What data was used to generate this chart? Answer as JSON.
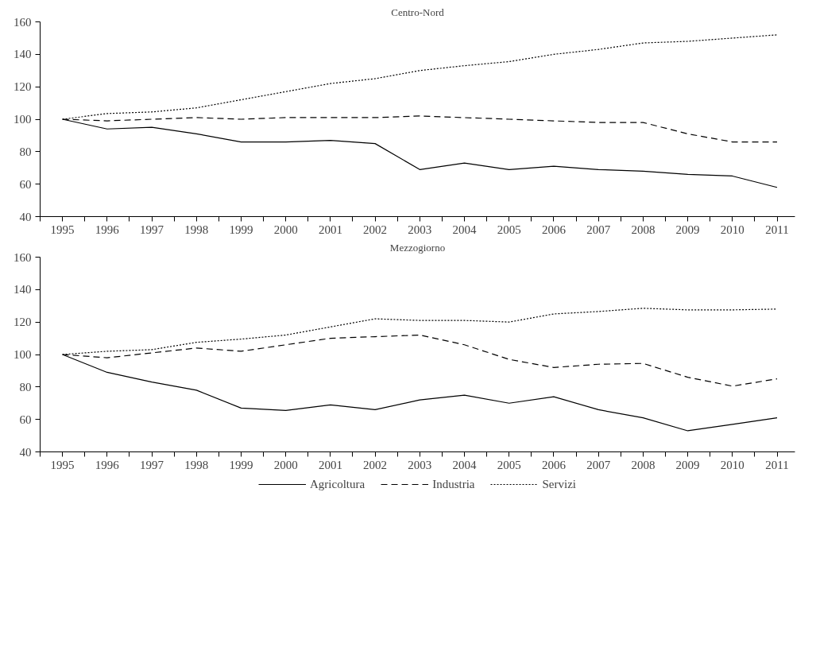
{
  "chart_data": [
    {
      "type": "line",
      "title": "Centro-Nord",
      "x": [
        1995,
        1996,
        1997,
        1998,
        1999,
        2000,
        2001,
        2002,
        2003,
        2004,
        2005,
        2006,
        2007,
        2008,
        2009,
        2010,
        2011
      ],
      "xlim": [
        1994.5,
        2011.4
      ],
      "xticks": [
        {
          "value": 1994.5,
          "label": null
        },
        1995,
        {
          "value": 1995.5,
          "label": null
        },
        1996,
        {
          "value": 1996.5,
          "label": null
        },
        1997,
        {
          "value": 1997.5,
          "label": null
        },
        1998,
        {
          "value": 1998.5,
          "label": null
        },
        1999,
        {
          "value": 1999.5,
          "label": null
        },
        2000,
        {
          "value": 2000.5,
          "label": null
        },
        2001,
        {
          "value": 2001.5,
          "label": null
        },
        2002,
        {
          "value": 2002.5,
          "label": null
        },
        2003,
        {
          "value": 2003.5,
          "label": null
        },
        2004,
        {
          "value": 2004.5,
          "label": null
        },
        2005,
        {
          "value": 2005.5,
          "label": null
        },
        2006,
        {
          "value": 2006.5,
          "label": null
        },
        2007,
        {
          "value": 2007.5,
          "label": null
        },
        2008,
        {
          "value": 2008.5,
          "label": null
        },
        2009,
        {
          "value": 2009.5,
          "label": null
        },
        2010,
        {
          "value": 2010.5,
          "label": null
        },
        2011
      ],
      "ylim": [
        40,
        160
      ],
      "yticks": [
        40,
        60,
        80,
        100,
        120,
        140,
        160
      ],
      "grid": false,
      "series": [
        {
          "color": "#000000",
          "line_style": "solid",
          "values": [
            100,
            94,
            95,
            91,
            86,
            86,
            87,
            85,
            69,
            73,
            69,
            71,
            69,
            68,
            66,
            65,
            58
          ]
        },
        {
          "color": "#000000",
          "line_style": "dashed",
          "values": [
            100,
            99,
            100,
            101,
            100,
            101,
            101,
            101,
            102,
            101,
            100,
            99,
            98,
            98,
            91,
            86,
            86
          ]
        },
        {
          "color": "#000000",
          "line_style": "dotted",
          "values": [
            100,
            103.5,
            104.5,
            107,
            112,
            117,
            122,
            125,
            130,
            133,
            135.5,
            140,
            143,
            147,
            148,
            150,
            152
          ]
        }
      ]
    },
    {
      "type": "line",
      "title": "Mezzogiorno",
      "x": [
        1995,
        1996,
        1997,
        1998,
        1999,
        2000,
        2001,
        2002,
        2003,
        2004,
        2005,
        2006,
        2007,
        2008,
        2009,
        2010,
        2011
      ],
      "xlim": [
        1994.5,
        2011.4
      ],
      "xticks": [
        {
          "value": 1994.5,
          "label": null
        },
        1995,
        {
          "value": 1995.5,
          "label": null
        },
        1996,
        {
          "value": 1996.5,
          "label": null
        },
        1997,
        {
          "value": 1997.5,
          "label": null
        },
        1998,
        {
          "value": 1998.5,
          "label": null
        },
        1999,
        {
          "value": 1999.5,
          "label": null
        },
        2000,
        {
          "value": 2000.5,
          "label": null
        },
        2001,
        {
          "value": 2001.5,
          "label": null
        },
        2002,
        {
          "value": 2002.5,
          "label": null
        },
        2003,
        {
          "value": 2003.5,
          "label": null
        },
        2004,
        {
          "value": 2004.5,
          "label": null
        },
        2005,
        {
          "value": 2005.5,
          "label": null
        },
        2006,
        {
          "value": 2006.5,
          "label": null
        },
        2007,
        {
          "value": 2007.5,
          "label": null
        },
        2008,
        {
          "value": 2008.5,
          "label": null
        },
        2009,
        {
          "value": 2009.5,
          "label": null
        },
        2010,
        {
          "value": 2010.5,
          "label": null
        },
        2011
      ],
      "ylim": [
        40,
        160
      ],
      "yticks": [
        40,
        60,
        80,
        100,
        120,
        140,
        160
      ],
      "grid": false,
      "legend": "bottom",
      "series": [
        {
          "name": "Agricoltura",
          "color": "#000000",
          "line_style": "solid",
          "values": [
            100,
            89,
            83,
            78,
            67,
            65.5,
            69,
            66,
            72,
            75,
            70,
            74,
            66,
            61,
            53,
            57,
            61
          ]
        },
        {
          "name": "Industria",
          "color": "#000000",
          "line_style": "dashed",
          "values": [
            100,
            98,
            101,
            104,
            102,
            106,
            110,
            111,
            112,
            106,
            97,
            92,
            94,
            94.5,
            86,
            80.5,
            85
          ]
        },
        {
          "name": "Servizi",
          "color": "#000000",
          "line_style": "dotted",
          "values": [
            100,
            102,
            103,
            107.5,
            109.5,
            112,
            117,
            122,
            121,
            121,
            120,
            125,
            126.5,
            128.5,
            127.5,
            127.5,
            128
          ]
        }
      ]
    }
  ]
}
